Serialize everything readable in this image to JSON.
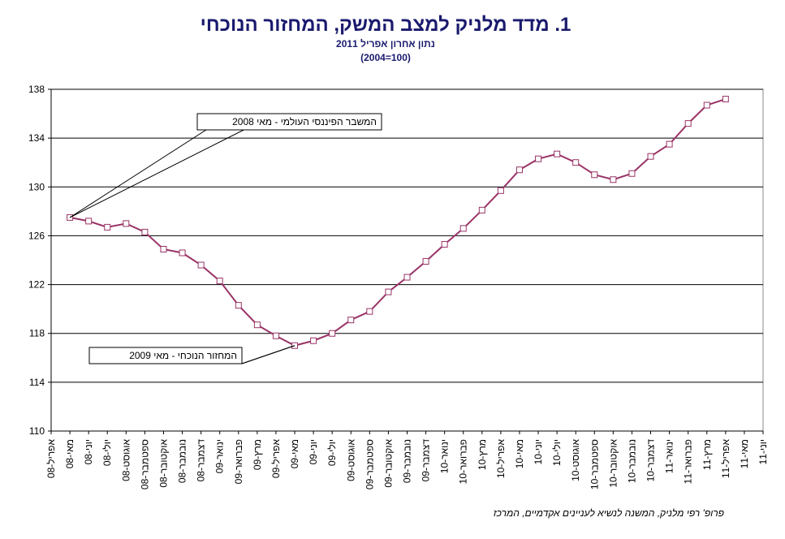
{
  "chart_data": {
    "type": "line",
    "title": "1.  מדד מלניק למצב המשק, המחזור הנוכחי",
    "subtitle": "נתון אחרון אפריל 2011",
    "base_note": "(2004=100)",
    "source": "פרופ' רפי מלניק, המשנה לנשיא לעניינים אקדמיים, המרכז",
    "annotations": [
      "המשבר הפיננסי העולמי  - מאי 2008",
      "המחזור הנוכחי  - מאי 2009"
    ],
    "categories": [
      "אפריל-08",
      "מאי-08",
      "יוני-08",
      "יולי-08",
      "אוגוסט-08",
      "ספטמבר-08",
      "אוקטובר-08",
      "נובמבר-08",
      "דצמבר-08",
      "ינואר-09",
      "פברואר-09",
      "מרץ-09",
      "אפריל-09",
      "מאי-09",
      "יוני-09",
      "יולי-09",
      "אוגוסט-09",
      "ספטמבר-09",
      "אוקטובר-09",
      "נובמבר-09",
      "דצמבר-09",
      "ינואר-10",
      "פברואר-10",
      "מרץ-10",
      "אפריל-10",
      "מאי-10",
      "יוני-10",
      "יולי-10",
      "אוגוסט-10",
      "ספטמבר-10",
      "אוקטובר-10",
      "נובמבר-10",
      "דצמבר-10",
      "ינואר-11",
      "פברואר-11",
      "מרץ-11",
      "אפריל-11",
      "מאי-11",
      "יוני-11"
    ],
    "series": [
      {
        "color": "#993366",
        "values": [
          null,
          127.5,
          127.2,
          126.7,
          127.0,
          126.3,
          124.9,
          124.6,
          123.6,
          122.3,
          120.3,
          118.7,
          117.8,
          117.0,
          117.4,
          118.0,
          119.1,
          119.8,
          121.4,
          122.6,
          123.9,
          125.3,
          126.6,
          128.1,
          129.7,
          131.4,
          132.3,
          132.7,
          132.0,
          131.0,
          130.6,
          131.1,
          132.5,
          133.5,
          135.2,
          136.7,
          137.2,
          null,
          null
        ]
      }
    ],
    "ylim": [
      110,
      138
    ],
    "yticks": [
      110,
      114,
      118,
      122,
      126,
      130,
      134,
      138
    ],
    "grid": true
  }
}
